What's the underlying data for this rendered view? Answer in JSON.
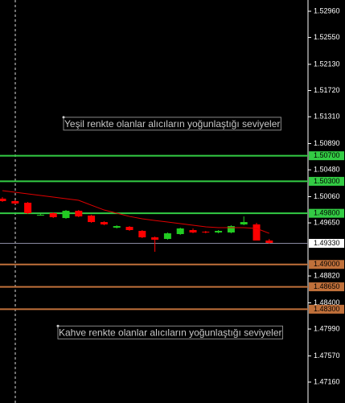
{
  "chart_data": {
    "type": "candlestick",
    "ylim": [
      1.46833,
      1.53136
    ],
    "yticks": [
      {
        "value": 1.5296,
        "label": "1.52960"
      },
      {
        "value": 1.5255,
        "label": "1.52550"
      },
      {
        "value": 1.5213,
        "label": "1.52130"
      },
      {
        "value": 1.5172,
        "label": "1.51720"
      },
      {
        "value": 1.5131,
        "label": "1.51310"
      },
      {
        "value": 1.5089,
        "label": "1.50890"
      },
      {
        "value": 1.5048,
        "label": "1.50480"
      },
      {
        "value": 1.5006,
        "label": "1.50060"
      },
      {
        "value": 1.4965,
        "label": "1.49650"
      },
      {
        "value": 1.4882,
        "label": "1.48820"
      },
      {
        "value": 1.484,
        "label": "1.48400"
      },
      {
        "value": 1.4799,
        "label": "1.47990"
      },
      {
        "value": 1.4757,
        "label": "1.47570"
      },
      {
        "value": 1.4716,
        "label": "1.47160"
      }
    ],
    "up_color": "#22cc22",
    "down_color": "#ff0000",
    "open": [
      1.50029,
      1.49991,
      1.49965,
      1.49776,
      1.49802,
      1.49726,
      1.49839,
      1.49764,
      1.49663,
      1.49575,
      1.49588,
      1.49525,
      1.49424,
      1.49399,
      1.49475,
      1.49538,
      1.49512,
      1.495,
      1.495,
      1.49626,
      1.49626,
      1.49374
    ],
    "high": [
      1.50053,
      1.50004,
      1.49978,
      1.49789,
      1.49814,
      1.49852,
      1.49852,
      1.49776,
      1.49676,
      1.49613,
      1.496,
      1.49538,
      1.49437,
      1.495,
      1.49575,
      1.49563,
      1.49525,
      1.49538,
      1.49613,
      1.49751,
      1.49651,
      1.49399
    ],
    "low": [
      1.49978,
      1.4994,
      1.49789,
      1.49764,
      1.49726,
      1.49714,
      1.49739,
      1.49651,
      1.49613,
      1.49563,
      1.49525,
      1.49412,
      1.49198,
      1.49387,
      1.49462,
      1.49487,
      1.49487,
      1.49487,
      1.49487,
      1.49613,
      1.49374,
      1.49324
    ],
    "close": [
      1.49991,
      1.49953,
      1.49802,
      1.49776,
      1.49739,
      1.49839,
      1.49751,
      1.49663,
      1.49626,
      1.496,
      1.49538,
      1.49424,
      1.49387,
      1.49487,
      1.49563,
      1.495,
      1.495,
      1.49525,
      1.496,
      1.49663,
      1.49374,
      1.49337
    ],
    "ma": {
      "color": "#e00000",
      "values": [
        1.50154,
        1.50129,
        1.50104,
        1.50079,
        1.50053,
        1.50028,
        1.50003,
        1.49927,
        1.49852,
        1.49802,
        1.49751,
        1.49714,
        1.49688,
        1.49663,
        1.49638,
        1.49613,
        1.49588,
        1.49575,
        1.49575,
        1.49575,
        1.49563,
        1.49487
      ]
    },
    "levels": [
      {
        "value": 1.507,
        "label": "1.50700",
        "color": "#33cc44"
      },
      {
        "value": 1.503,
        "label": "1.50300",
        "color": "#33cc44"
      },
      {
        "value": 1.498,
        "label": "1.49800",
        "color": "#33cc44"
      },
      {
        "value": 1.49,
        "label": "1.49000",
        "color": "#c0703a"
      },
      {
        "value": 1.4865,
        "label": "1.48650",
        "color": "#c0703a"
      },
      {
        "value": 1.483,
        "label": "1.48300",
        "color": "#c0703a"
      }
    ],
    "current_price": {
      "value": 1.4933,
      "label": "1.49330",
      "color": "#8a8aa0"
    },
    "annotations": [
      {
        "text": "Yeşil renkte olanlar alıcıların yoğunlaştığı seviyeler",
        "value": 1.51191
      },
      {
        "text": "Kahve renkte olanlar alıcıların yoğunlaştığı seviyeler",
        "value": 1.47926
      }
    ]
  }
}
